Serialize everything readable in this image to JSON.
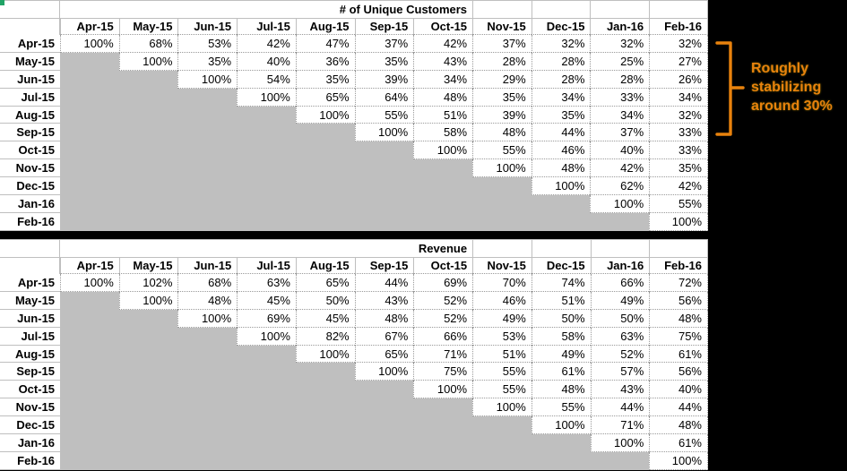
{
  "page": {
    "background": "#000000"
  },
  "colors": {
    "gray_fill": "#BFBFBF",
    "gridline": "#BFBFBF",
    "dotted_border": "#9A9A9A",
    "text": "#000000",
    "accent_orange": "#E8820D",
    "corner_mark_green": "#21A366"
  },
  "annotation": {
    "lines": [
      "Roughly",
      "stabilizing",
      "around 30%"
    ],
    "full_text": "Roughly stabilizing around 30%",
    "color": "#E8820D"
  },
  "chart_data": [
    {
      "type": "table",
      "title": "# of Unique Customers",
      "columns": [
        "Apr-15",
        "May-15",
        "Jun-15",
        "Jul-15",
        "Aug-15",
        "Sep-15",
        "Oct-15",
        "Nov-15",
        "Dec-15",
        "Jan-16",
        "Feb-16"
      ],
      "rows": [
        "Apr-15",
        "May-15",
        "Jun-15",
        "Jul-15",
        "Aug-15",
        "Sep-15",
        "Oct-15",
        "Nov-15",
        "Dec-15",
        "Jan-16",
        "Feb-16"
      ],
      "values": [
        [
          "100%",
          "68%",
          "53%",
          "42%",
          "47%",
          "37%",
          "42%",
          "37%",
          "32%",
          "32%",
          "32%"
        ],
        [
          null,
          "100%",
          "35%",
          "40%",
          "36%",
          "35%",
          "43%",
          "28%",
          "28%",
          "25%",
          "27%"
        ],
        [
          null,
          null,
          "100%",
          "54%",
          "35%",
          "39%",
          "34%",
          "29%",
          "28%",
          "28%",
          "26%"
        ],
        [
          null,
          null,
          null,
          "100%",
          "65%",
          "64%",
          "48%",
          "35%",
          "34%",
          "33%",
          "34%"
        ],
        [
          null,
          null,
          null,
          null,
          "100%",
          "55%",
          "51%",
          "39%",
          "35%",
          "34%",
          "32%"
        ],
        [
          null,
          null,
          null,
          null,
          null,
          "100%",
          "58%",
          "48%",
          "44%",
          "37%",
          "33%"
        ],
        [
          null,
          null,
          null,
          null,
          null,
          null,
          "100%",
          "55%",
          "46%",
          "40%",
          "33%"
        ],
        [
          null,
          null,
          null,
          null,
          null,
          null,
          null,
          "100%",
          "48%",
          "42%",
          "35%"
        ],
        [
          null,
          null,
          null,
          null,
          null,
          null,
          null,
          null,
          "100%",
          "62%",
          "42%"
        ],
        [
          null,
          null,
          null,
          null,
          null,
          null,
          null,
          null,
          null,
          "100%",
          "55%"
        ],
        [
          null,
          null,
          null,
          null,
          null,
          null,
          null,
          null,
          null,
          null,
          "100%"
        ]
      ]
    },
    {
      "type": "table",
      "title": "Revenue",
      "columns": [
        "Apr-15",
        "May-15",
        "Jun-15",
        "Jul-15",
        "Aug-15",
        "Sep-15",
        "Oct-15",
        "Nov-15",
        "Dec-15",
        "Jan-16",
        "Feb-16"
      ],
      "rows": [
        "Apr-15",
        "May-15",
        "Jun-15",
        "Jul-15",
        "Aug-15",
        "Sep-15",
        "Oct-15",
        "Nov-15",
        "Dec-15",
        "Jan-16",
        "Feb-16"
      ],
      "values": [
        [
          "100%",
          "102%",
          "68%",
          "63%",
          "65%",
          "44%",
          "69%",
          "70%",
          "74%",
          "66%",
          "72%"
        ],
        [
          null,
          "100%",
          "48%",
          "45%",
          "50%",
          "43%",
          "52%",
          "46%",
          "51%",
          "49%",
          "56%"
        ],
        [
          null,
          null,
          "100%",
          "69%",
          "45%",
          "48%",
          "52%",
          "49%",
          "50%",
          "50%",
          "48%"
        ],
        [
          null,
          null,
          null,
          "100%",
          "82%",
          "67%",
          "66%",
          "53%",
          "58%",
          "63%",
          "75%"
        ],
        [
          null,
          null,
          null,
          null,
          "100%",
          "65%",
          "71%",
          "51%",
          "49%",
          "52%",
          "61%"
        ],
        [
          null,
          null,
          null,
          null,
          null,
          "100%",
          "75%",
          "55%",
          "61%",
          "57%",
          "56%"
        ],
        [
          null,
          null,
          null,
          null,
          null,
          null,
          "100%",
          "55%",
          "48%",
          "43%",
          "40%"
        ],
        [
          null,
          null,
          null,
          null,
          null,
          null,
          null,
          "100%",
          "55%",
          "44%",
          "44%"
        ],
        [
          null,
          null,
          null,
          null,
          null,
          null,
          null,
          null,
          "100%",
          "71%",
          "48%"
        ],
        [
          null,
          null,
          null,
          null,
          null,
          null,
          null,
          null,
          null,
          "100%",
          "61%"
        ],
        [
          null,
          null,
          null,
          null,
          null,
          null,
          null,
          null,
          null,
          null,
          "100%"
        ]
      ]
    }
  ]
}
